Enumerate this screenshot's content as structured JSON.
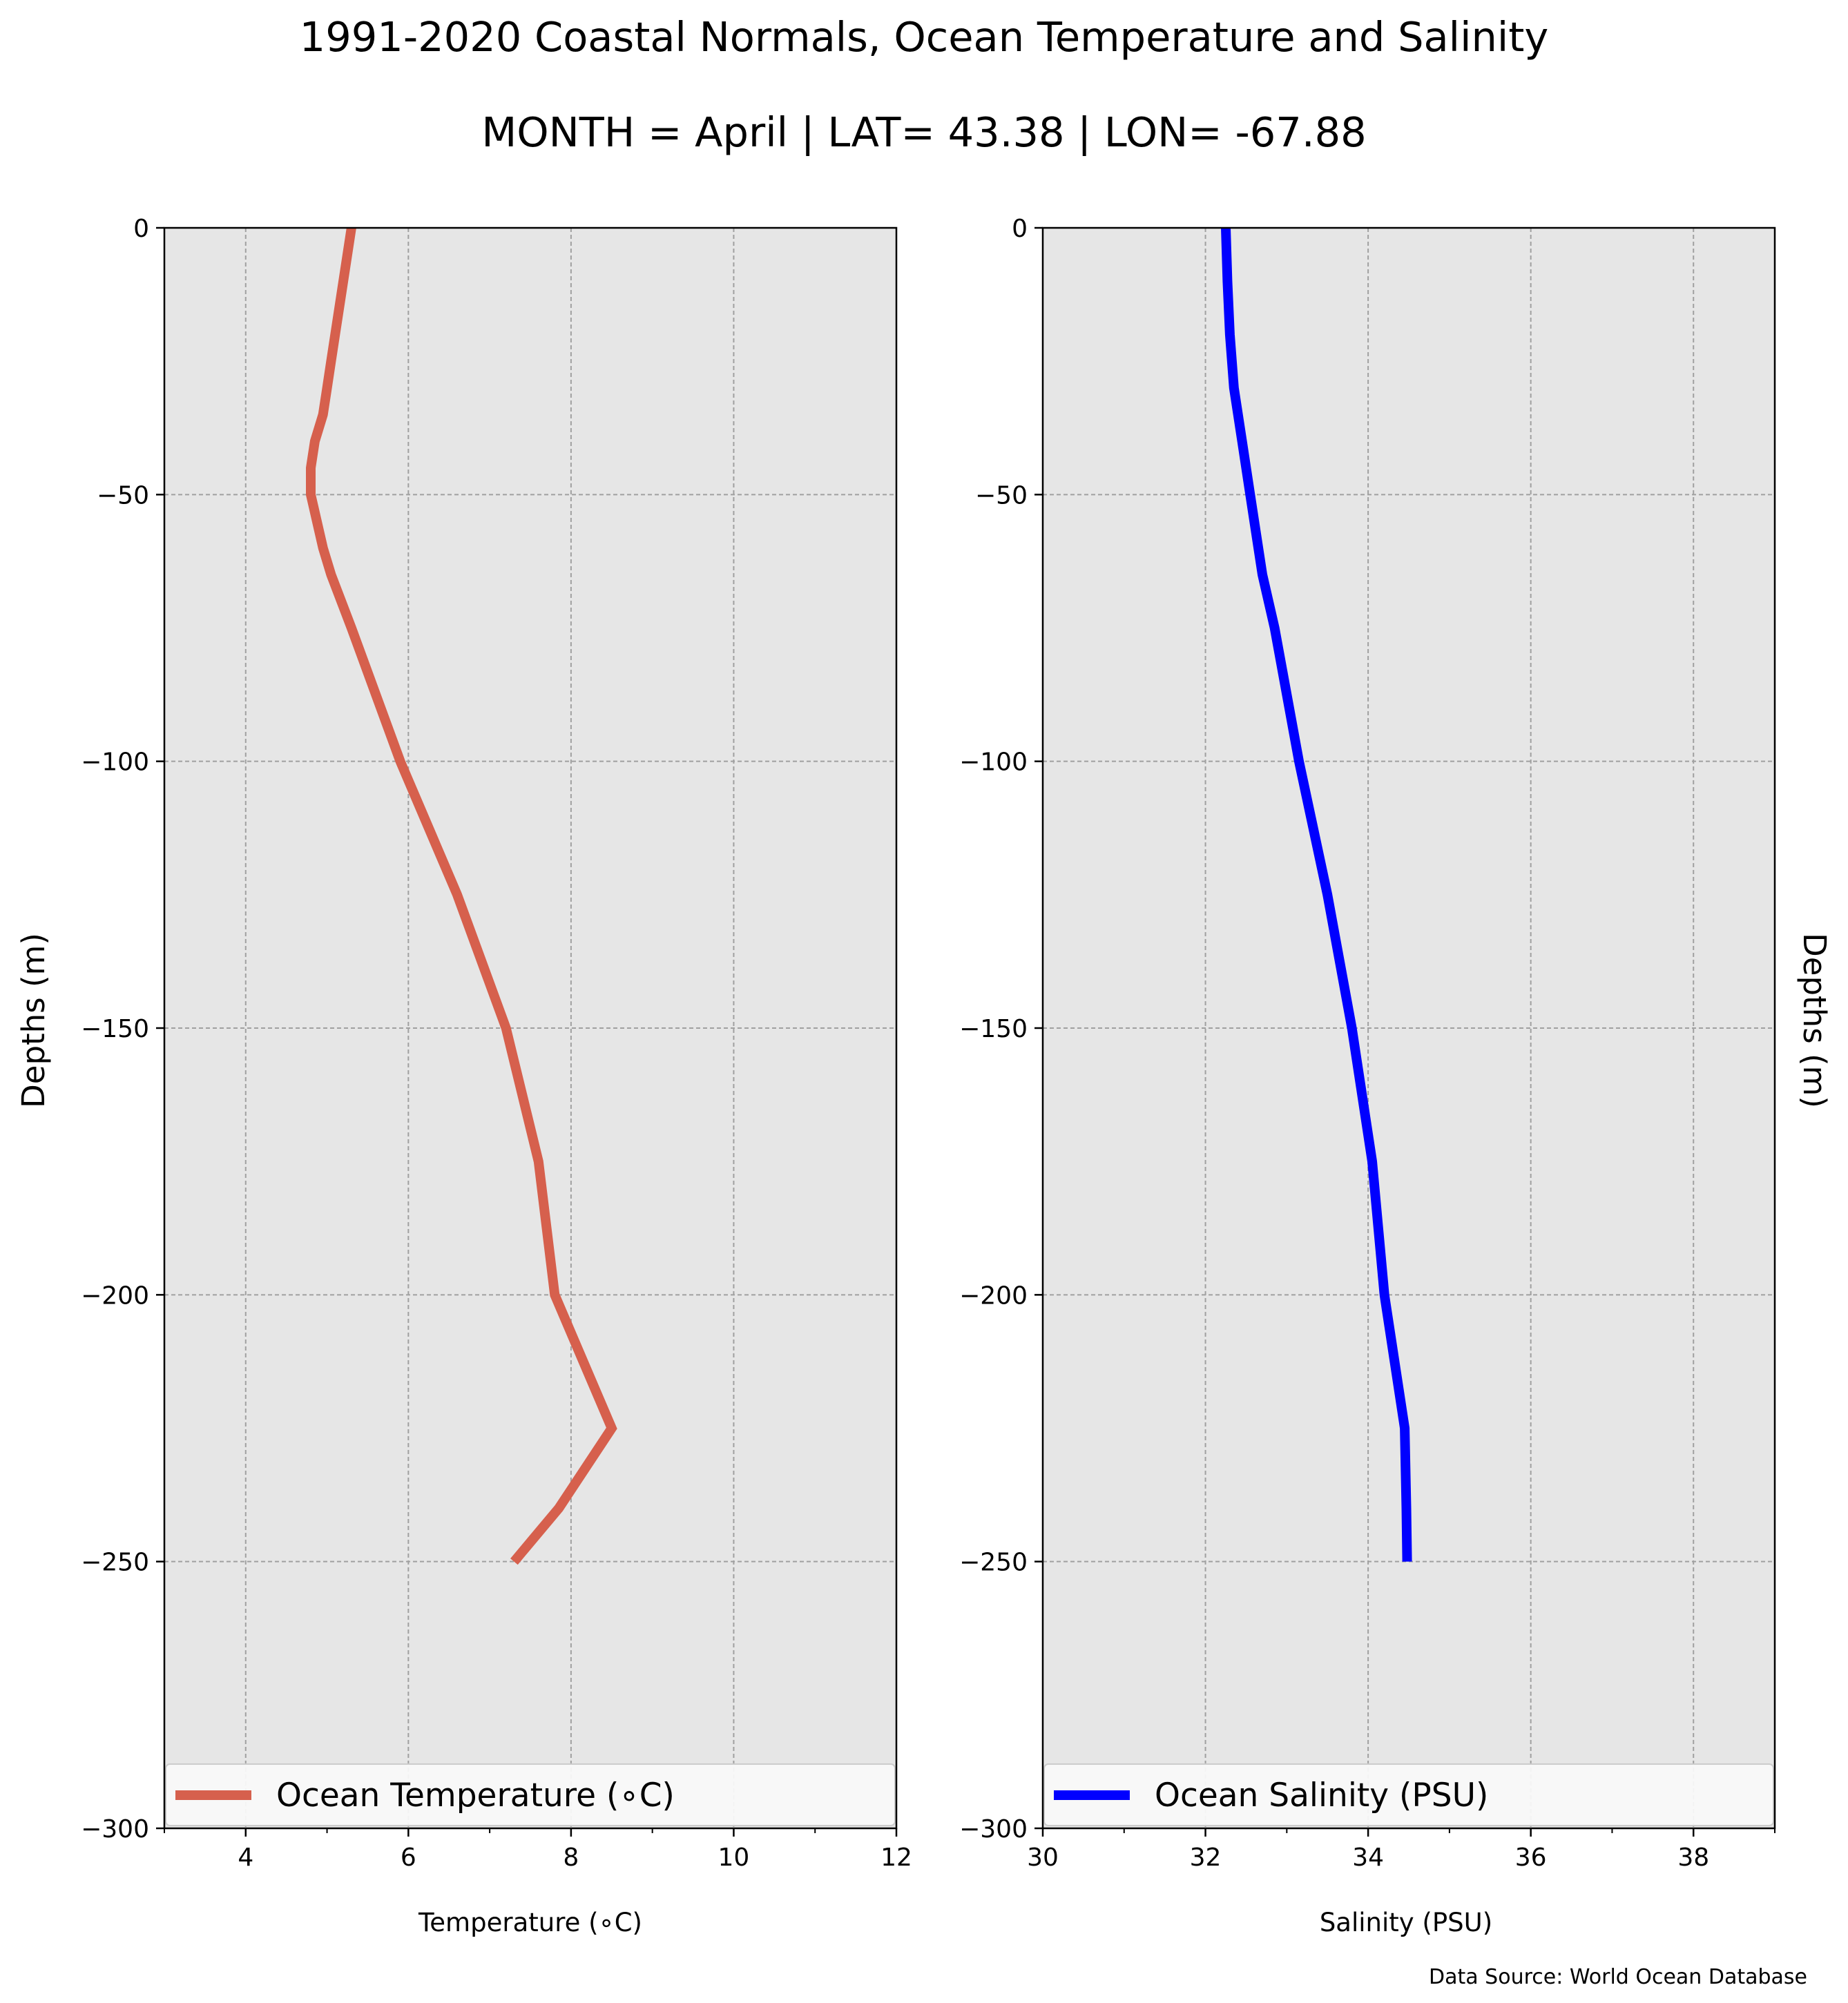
{
  "title": "1991-2020 Coastal Normals, Ocean Temperature and Salinity",
  "subtitle": "MONTH = April | LAT= 43.38 | LON= -67.88",
  "source": "Data Source: World Ocean Database",
  "chart_data": [
    {
      "type": "line",
      "ylabel": "Depths (m)",
      "xlabel": "Temperature ($^\\circ$C)",
      "xlabel_display": "Temperature (∘C)",
      "xlim": [
        3,
        12
      ],
      "ylim": [
        -300,
        0
      ],
      "xticks": [
        "4",
        "6",
        "8",
        "10",
        "12"
      ],
      "yticks": [
        "0",
        "−50",
        "−100",
        "−150",
        "−200",
        "−250",
        "−300"
      ],
      "grid": true,
      "legend_position": "bottom",
      "color": "#d6604d",
      "series": [
        {
          "name": "Ocean Temperature (∘C)",
          "x": [
            5.3,
            5.2,
            5.1,
            5.05,
            5.0,
            4.95,
            4.85,
            4.8,
            4.8,
            4.95,
            5.05,
            5.3,
            5.9,
            6.6,
            7.2,
            7.6,
            7.8,
            8.5,
            7.85,
            7.3
          ],
          "y": [
            0,
            -10,
            -20,
            -25,
            -30,
            -35,
            -40,
            -45,
            -50,
            -60,
            -65,
            -75,
            -100,
            -125,
            -150,
            -175,
            -200,
            -225,
            -240,
            -250
          ]
        }
      ]
    },
    {
      "type": "line",
      "ylabel": "Depths (m)",
      "xlabel": "Salinity (PSU)",
      "xlim": [
        30,
        39
      ],
      "ylim": [
        -300,
        0
      ],
      "xticks": [
        "30",
        "32",
        "34",
        "36",
        "38"
      ],
      "yticks": [
        "0",
        "−50",
        "−100",
        "−150",
        "−200",
        "−250",
        "−300"
      ],
      "grid": true,
      "legend_position": "bottom",
      "color": "#0000ff",
      "series": [
        {
          "name": "Ocean Salinity (PSU)",
          "x": [
            32.25,
            32.27,
            32.3,
            32.35,
            32.4,
            32.45,
            32.55,
            32.7,
            32.85,
            33.15,
            33.5,
            33.8,
            34.05,
            34.2,
            34.45,
            34.47,
            34.48
          ],
          "y": [
            0,
            -10,
            -20,
            -30,
            -35,
            -40,
            -50,
            -65,
            -75,
            -100,
            -125,
            -150,
            -175,
            -200,
            -225,
            -240,
            -250
          ]
        }
      ]
    }
  ]
}
